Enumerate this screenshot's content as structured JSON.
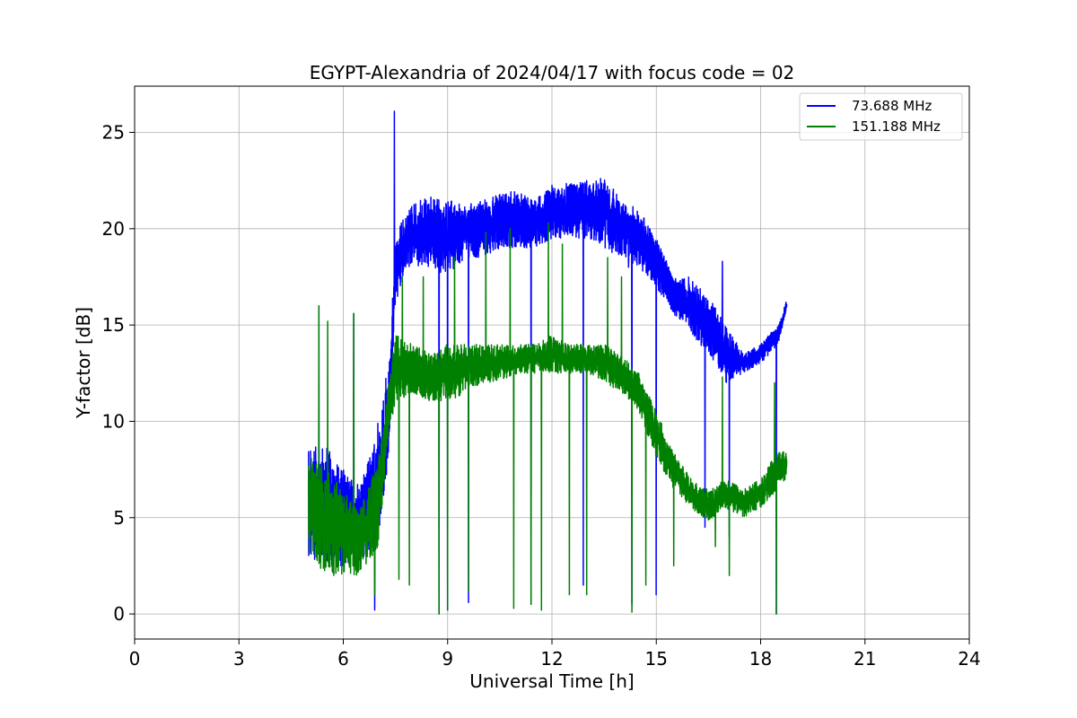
{
  "chart_data": {
    "type": "line",
    "title": "EGYPT-Alexandria of 2024/04/17 with focus code = 02",
    "xlabel": "Universal Time [h]",
    "ylabel": "Y-factor [dB]",
    "xlim": [
      0,
      24
    ],
    "ylim": [
      -1.3,
      27.4
    ],
    "xticks": [
      0,
      3,
      6,
      9,
      12,
      15,
      18,
      21,
      24
    ],
    "yticks": [
      0,
      5,
      10,
      15,
      20,
      25
    ],
    "xtick_labels": [
      "0",
      "3",
      "6",
      "9",
      "12",
      "15",
      "18",
      "21",
      "24"
    ],
    "ytick_labels": [
      "0",
      "5",
      "10",
      "15",
      "20",
      "25"
    ],
    "grid": true,
    "legend_position": "top-right",
    "series": [
      {
        "name": "73.688 MHz",
        "color": "#0000ff",
        "envelope": [
          [
            5.0,
            3.0,
            8.5
          ],
          [
            5.5,
            2.5,
            9.0
          ],
          [
            6.0,
            2.5,
            7.5
          ],
          [
            6.5,
            2.5,
            7.0
          ],
          [
            7.0,
            4.0,
            10.0
          ],
          [
            7.3,
            8.0,
            13.0
          ],
          [
            7.5,
            16.0,
            19.5
          ],
          [
            7.8,
            18.0,
            21.0
          ],
          [
            8.5,
            18.0,
            21.8
          ],
          [
            9.0,
            17.5,
            21.5
          ],
          [
            9.5,
            18.5,
            21.2
          ],
          [
            10.0,
            18.5,
            21.5
          ],
          [
            10.5,
            19.0,
            21.8
          ],
          [
            11.0,
            19.0,
            22.0
          ],
          [
            11.5,
            19.0,
            21.5
          ],
          [
            12.0,
            19.5,
            22.3
          ],
          [
            12.5,
            19.5,
            22.4
          ],
          [
            13.0,
            19.5,
            22.5
          ],
          [
            13.5,
            19.0,
            22.7
          ],
          [
            14.0,
            18.5,
            21.5
          ],
          [
            14.5,
            18.0,
            21.0
          ],
          [
            15.0,
            17.0,
            19.5
          ],
          [
            15.5,
            15.5,
            17.5
          ],
          [
            16.0,
            14.5,
            17.5
          ],
          [
            16.5,
            13.5,
            16.5
          ],
          [
            17.0,
            12.0,
            15.0
          ],
          [
            17.5,
            12.5,
            13.5
          ],
          [
            18.0,
            13.0,
            14.0
          ],
          [
            18.5,
            14.0,
            15.0
          ],
          [
            18.75,
            15.8,
            16.3
          ]
        ],
        "spikes": [
          [
            7.47,
            26.1
          ],
          [
            5.3,
            16.0
          ],
          [
            6.3,
            15.6
          ],
          [
            14.2,
            18.0
          ],
          [
            16.9,
            18.3
          ]
        ],
        "dips": [
          [
            6.9,
            0.2
          ],
          [
            8.75,
            0.0
          ],
          [
            9.0,
            0.2
          ],
          [
            9.6,
            0.6
          ],
          [
            11.4,
            0.5
          ],
          [
            12.9,
            1.5
          ],
          [
            14.3,
            0.5
          ],
          [
            15.0,
            1.0
          ],
          [
            16.4,
            4.5
          ],
          [
            17.1,
            4.0
          ],
          [
            18.45,
            0.0
          ]
        ]
      },
      {
        "name": "151.188 MHz",
        "color": "#008000",
        "envelope": [
          [
            5.0,
            3.0,
            8.5
          ],
          [
            5.5,
            2.0,
            7.5
          ],
          [
            6.0,
            2.0,
            6.5
          ],
          [
            6.5,
            2.0,
            5.5
          ],
          [
            7.0,
            3.5,
            8.0
          ],
          [
            7.3,
            9.0,
            12.0
          ],
          [
            7.5,
            11.0,
            14.5
          ],
          [
            8.0,
            11.5,
            14.0
          ],
          [
            8.5,
            11.0,
            13.5
          ],
          [
            9.0,
            11.0,
            14.0
          ],
          [
            9.5,
            11.5,
            14.0
          ],
          [
            10.0,
            12.0,
            14.0
          ],
          [
            10.5,
            12.0,
            14.0
          ],
          [
            11.0,
            12.5,
            14.0
          ],
          [
            11.5,
            12.5,
            14.0
          ],
          [
            12.0,
            12.5,
            14.5
          ],
          [
            12.5,
            12.5,
            14.0
          ],
          [
            13.0,
            12.5,
            14.0
          ],
          [
            13.5,
            12.0,
            14.0
          ],
          [
            14.0,
            11.5,
            13.5
          ],
          [
            14.5,
            10.5,
            12.5
          ],
          [
            15.0,
            8.0,
            10.5
          ],
          [
            15.5,
            6.5,
            8.5
          ],
          [
            16.0,
            5.5,
            7.0
          ],
          [
            16.5,
            4.8,
            6.5
          ],
          [
            17.0,
            5.5,
            7.0
          ],
          [
            17.5,
            5.0,
            6.5
          ],
          [
            18.0,
            5.5,
            7.0
          ],
          [
            18.5,
            6.5,
            8.5
          ],
          [
            18.75,
            7.0,
            8.5
          ]
        ],
        "spikes": [
          [
            5.3,
            16.0
          ],
          [
            5.55,
            15.2
          ],
          [
            6.3,
            15.6
          ],
          [
            7.7,
            17.5
          ],
          [
            8.3,
            17.5
          ],
          [
            9.2,
            18.5
          ],
          [
            10.1,
            19.8
          ],
          [
            10.8,
            20.0
          ],
          [
            11.9,
            20.3
          ],
          [
            12.3,
            19.2
          ],
          [
            13.6,
            18.5
          ],
          [
            14.0,
            17.5
          ],
          [
            16.9,
            12.3
          ],
          [
            18.4,
            12.0
          ]
        ],
        "dips": [
          [
            6.9,
            1.0
          ],
          [
            7.6,
            1.8
          ],
          [
            7.9,
            1.5
          ],
          [
            8.75,
            0.0
          ],
          [
            9.0,
            0.2
          ],
          [
            9.6,
            1.2
          ],
          [
            10.9,
            0.3
          ],
          [
            11.4,
            0.5
          ],
          [
            11.7,
            0.2
          ],
          [
            12.5,
            1.0
          ],
          [
            13.0,
            1.0
          ],
          [
            14.3,
            0.1
          ],
          [
            14.7,
            1.5
          ],
          [
            15.5,
            2.5
          ],
          [
            16.7,
            3.5
          ],
          [
            17.1,
            2.0
          ],
          [
            18.45,
            0.0
          ]
        ]
      }
    ]
  }
}
